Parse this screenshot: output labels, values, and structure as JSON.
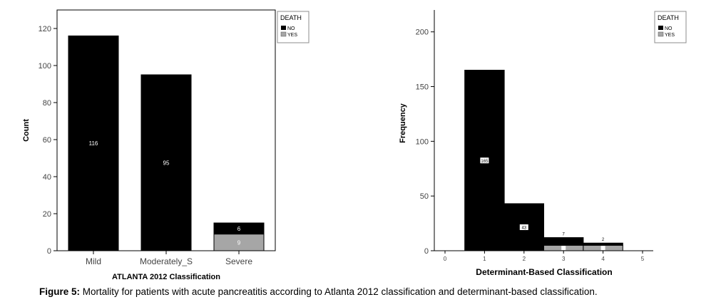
{
  "caption": {
    "label": "Figure 5:",
    "text": "Mortality for patients with acute pancreatitis according to Atlanta 2012 classification and determinant-based classification."
  },
  "colors": {
    "no": "#000000",
    "yes": "#a6a6a6",
    "frame": "#000000",
    "legend_frame": "#8c8c8c"
  },
  "chart_data": [
    {
      "type": "bar",
      "stacked": true,
      "xlabel": "ATLANTA 2012 Classification",
      "ylabel": "Count",
      "ylim": [
        0,
        130
      ],
      "yticks": [
        0,
        20,
        40,
        60,
        80,
        100,
        120
      ],
      "categories": [
        "Mild",
        "Moderately_S",
        "Severe"
      ],
      "legend_title": "DEATH",
      "legend_position": "top-right",
      "series": [
        {
          "name": "YES",
          "values": [
            0,
            0,
            9
          ],
          "labels": [
            "",
            "",
            "9"
          ]
        },
        {
          "name": "NO",
          "values": [
            116,
            95,
            6
          ],
          "labels": [
            "116",
            "95",
            "6"
          ]
        }
      ]
    },
    {
      "type": "bar",
      "stacked": true,
      "xlabel": "Determinant-Based Classification",
      "ylabel": "Frequency",
      "ylim": [
        0,
        220
      ],
      "xlim": [
        0,
        5
      ],
      "yticks": [
        0,
        50,
        100,
        150,
        200
      ],
      "xticks": [
        0,
        1,
        2,
        3,
        4,
        5
      ],
      "categories": [
        1,
        2,
        3,
        4
      ],
      "legend_title": "DEATH",
      "legend_position": "top-right",
      "series": [
        {
          "name": "YES",
          "values": [
            0,
            0,
            5,
            5
          ],
          "labels": [
            "",
            "",
            "",
            ""
          ]
        },
        {
          "name": "NO",
          "values": [
            165,
            43,
            7,
            2
          ],
          "labels": [
            "165",
            "43",
            "7",
            "2"
          ]
        }
      ]
    }
  ]
}
